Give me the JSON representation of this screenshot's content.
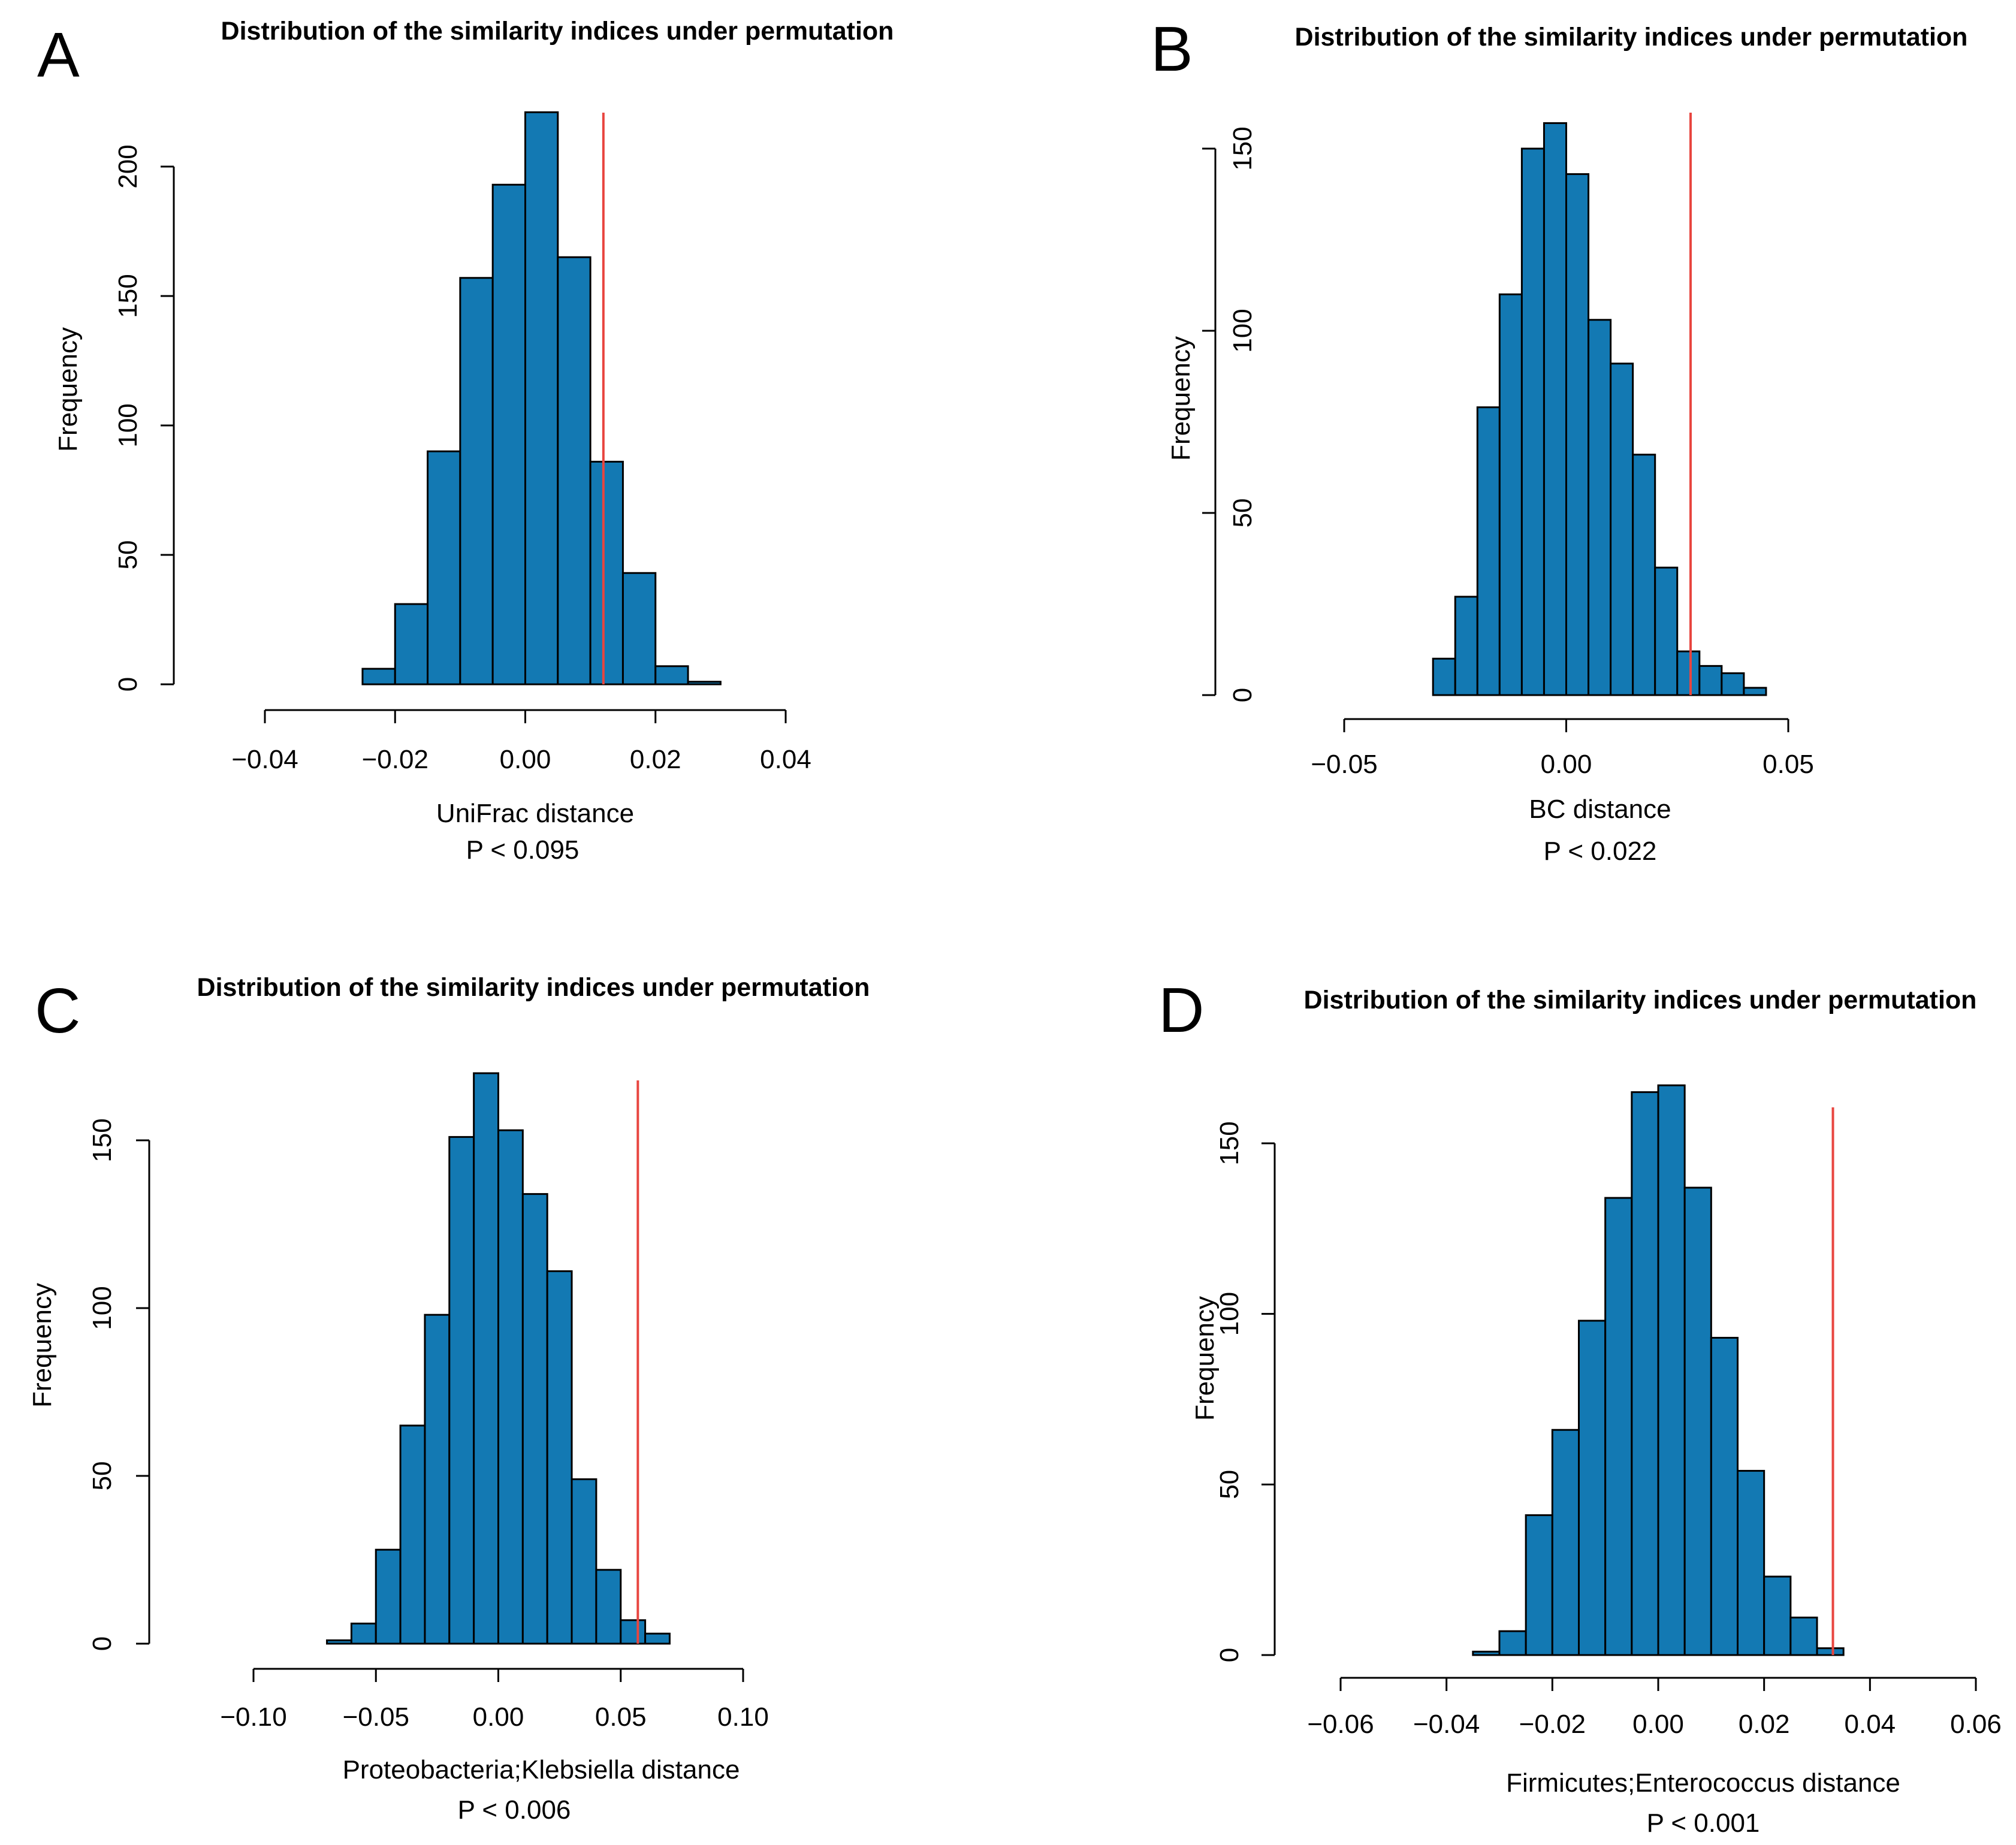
{
  "colors": {
    "bar_fill": "#1379b3",
    "bar_stroke": "#000000",
    "ref_line": "#e8453f"
  },
  "chart_data": [
    {
      "panel": "A",
      "type": "bar",
      "title": "Distribution of the similarity indices under permutation",
      "xlabel": "UniFrac distance",
      "ylabel": "Frequency",
      "pvalue": "P <  0.095",
      "bin_edges": [
        -0.025,
        -0.02,
        -0.015,
        -0.01,
        -0.005,
        0.0,
        0.005,
        0.01,
        0.015,
        0.02,
        0.025,
        0.03
      ],
      "values": [
        6,
        31,
        90,
        157,
        193,
        221,
        165,
        86,
        43,
        7,
        1
      ],
      "ref_line_x": 0.012,
      "xlim": [
        -0.04,
        0.04
      ],
      "ylim": [
        0,
        200
      ],
      "xticks": [
        -0.04,
        -0.02,
        0.0,
        0.02,
        0.04
      ],
      "xtick_labels": [
        "−0.04",
        "−0.02",
        "0.00",
        "0.02",
        "0.04"
      ],
      "yticks": [
        0,
        50,
        100,
        150,
        200
      ],
      "ytick_labels": [
        "0",
        "50",
        "100",
        "150",
        "200"
      ]
    },
    {
      "panel": "B",
      "type": "bar",
      "title": "Distribution of the similarity indices under permutation",
      "xlabel": "BC distance",
      "ylabel": "Frequency",
      "pvalue": "P <  0.022",
      "bin_edges": [
        -0.03,
        -0.025,
        -0.02,
        -0.015,
        -0.01,
        -0.005,
        0.0,
        0.005,
        0.01,
        0.015,
        0.02,
        0.025,
        0.03,
        0.035,
        0.04,
        0.045
      ],
      "values": [
        10,
        27,
        79,
        110,
        150,
        157,
        143,
        103,
        91,
        66,
        35,
        12,
        8,
        6,
        2
      ],
      "ref_line_x": 0.028,
      "xlim": [
        -0.05,
        0.05
      ],
      "ylim": [
        0,
        150
      ],
      "xticks": [
        -0.05,
        0.0,
        0.05
      ],
      "xtick_labels": [
        "−0.05",
        "0.00",
        "0.05"
      ],
      "yticks": [
        0,
        50,
        100,
        150
      ],
      "ytick_labels": [
        "0",
        "50",
        "100",
        "150"
      ]
    },
    {
      "panel": "C",
      "type": "bar",
      "title": "Distribution of the similarity indices under permutation",
      "xlabel": "Proteobacteria;Klebsiella distance",
      "ylabel": "Frequency",
      "pvalue": "P <  0.006",
      "bin_edges": [
        -0.07,
        -0.06,
        -0.05,
        -0.04,
        -0.03,
        -0.02,
        -0.01,
        0.0,
        0.01,
        0.02,
        0.03,
        0.04,
        0.05,
        0.06,
        0.07
      ],
      "values": [
        1,
        6,
        28,
        65,
        98,
        151,
        170,
        153,
        134,
        111,
        49,
        22,
        7,
        3
      ],
      "ref_line_x": 0.057,
      "xlim": [
        -0.1,
        0.1
      ],
      "ylim": [
        0,
        150
      ],
      "xticks": [
        -0.1,
        -0.05,
        0.0,
        0.05,
        0.1
      ],
      "xtick_labels": [
        "−0.10",
        "−0.05",
        "0.00",
        "0.05",
        "0.10"
      ],
      "yticks": [
        0,
        50,
        100,
        150
      ],
      "ytick_labels": [
        "0",
        "50",
        "100",
        "150"
      ]
    },
    {
      "panel": "D",
      "type": "bar",
      "title": "Distribution of the similarity indices under permutation",
      "xlabel": "Firmicutes;Enterococcus distance",
      "ylabel": "Frequency",
      "pvalue": "P <  0.001",
      "bin_edges": [
        -0.035,
        -0.03,
        -0.025,
        -0.02,
        -0.015,
        -0.01,
        -0.005,
        0.0,
        0.005,
        0.01,
        0.015,
        0.02,
        0.025,
        0.03,
        0.035
      ],
      "values": [
        1,
        7,
        41,
        66,
        98,
        134,
        165,
        167,
        137,
        93,
        54,
        23,
        11,
        2
      ],
      "ref_line_x": 0.033,
      "xlim": [
        -0.06,
        0.06
      ],
      "ylim": [
        0,
        150
      ],
      "xticks": [
        -0.06,
        -0.04,
        -0.02,
        0.0,
        0.02,
        0.04,
        0.06
      ],
      "xtick_labels": [
        "−0.06",
        "−0.04",
        "−0.02",
        "0.00",
        "0.02",
        "0.04",
        "0.06"
      ],
      "yticks": [
        0,
        50,
        100,
        150
      ],
      "ytick_labels": [
        "0",
        "50",
        "100",
        "150"
      ]
    }
  ]
}
